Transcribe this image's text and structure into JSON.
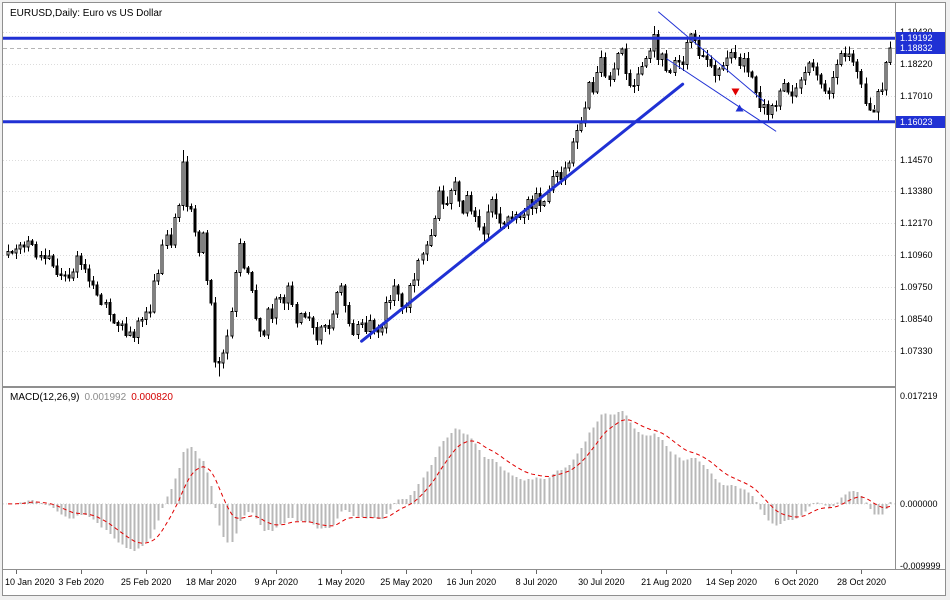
{
  "window": {
    "title": "EURUSD,Daily: Euro vs US Dollar"
  },
  "macd": {
    "name": "MACD(12,26,9)",
    "value_main": "0.001992",
    "value_signal": "0.000820"
  },
  "chart_data": {
    "type": "candlestick",
    "symbol": "EURUSD",
    "timeframe": "Daily",
    "description": "Euro vs US Dollar",
    "colors": {
      "accent_blue": "#2031d4",
      "bull": "#ffffff",
      "bear": "#000000",
      "histogram": "#b8b8b8",
      "signal": "#e00000"
    },
    "price_axis": {
      "range": {
        "top": 1.2053,
        "bottom": 1.06
      },
      "gridlines": [
        "1.19430",
        "1.18220",
        "1.17010",
        "1.14570",
        "1.13380",
        "1.12170",
        "1.10960",
        "1.09750",
        "1.08540",
        "1.07330"
      ],
      "highlighted": [
        {
          "text": "1.19192",
          "value": 1.19192,
          "type": "hline"
        },
        {
          "text": "1.18832",
          "value": 1.18832,
          "type": "bid"
        },
        {
          "text": "1.16023",
          "value": 1.16023,
          "type": "hline"
        }
      ]
    },
    "x_axis": {
      "labels": [
        {
          "text": "10 Jan 2020",
          "bar": 2
        },
        {
          "text": "3 Feb 2020",
          "bar": 18
        },
        {
          "text": "25 Feb 2020",
          "bar": 34
        },
        {
          "text": "18 Mar 2020",
          "bar": 50
        },
        {
          "text": "9 Apr 2020",
          "bar": 66
        },
        {
          "text": "1 May 2020",
          "bar": 82
        },
        {
          "text": "25 May 2020",
          "bar": 98
        },
        {
          "text": "16 Jun 2020",
          "bar": 114
        },
        {
          "text": "8 Jul 2020",
          "bar": 130
        },
        {
          "text": "30 Jul 2020",
          "bar": 146
        },
        {
          "text": "21 Aug 2020",
          "bar": 162
        },
        {
          "text": "14 Sep 2020",
          "bar": 178
        },
        {
          "text": "6 Oct 2020",
          "bar": 194
        },
        {
          "text": "28 Oct 2020",
          "bar": 210
        }
      ]
    },
    "candles": {
      "closes": [
        1.111,
        1.1105,
        1.112,
        1.1134,
        1.1128,
        1.115,
        1.1136,
        1.109,
        1.1095,
        1.1084,
        1.1093,
        1.1055,
        1.1024,
        1.1019,
        1.1022,
        1.101,
        1.1032,
        1.1093,
        1.106,
        1.1043,
        1.0998,
        1.0983,
        1.0945,
        1.091,
        1.0917,
        1.0871,
        1.084,
        1.083,
        1.0835,
        1.0792,
        1.0805,
        1.0785,
        1.0846,
        1.0853,
        1.0881,
        1.088,
        1.0999,
        1.1026,
        1.1134,
        1.1173,
        1.1135,
        1.124,
        1.1284,
        1.145,
        1.1281,
        1.1271,
        1.1184,
        1.1106,
        1.118,
        1.1,
        1.0915,
        1.0692,
        1.0688,
        1.0725,
        1.0789,
        1.0883,
        1.103,
        1.1141,
        1.1047,
        1.1031,
        1.0962,
        1.0856,
        1.0808,
        1.0793,
        1.0893,
        1.0857,
        1.093,
        1.0936,
        1.0914,
        1.098,
        1.091,
        1.084,
        1.0875,
        1.0862,
        1.0858,
        1.0822,
        1.0775,
        1.0823,
        1.083,
        1.0819,
        1.0873,
        1.0955,
        1.098,
        1.0905,
        1.0837,
        1.0795,
        1.0834,
        1.0839,
        1.0807,
        1.0848,
        1.0816,
        1.0805,
        1.082,
        1.0916,
        1.0924,
        1.098,
        1.0949,
        1.0901,
        1.0898,
        1.0981,
        1.1002,
        1.1077,
        1.1101,
        1.1134,
        1.1171,
        1.1235,
        1.1339,
        1.129,
        1.1293,
        1.1341,
        1.1374,
        1.1301,
        1.1256,
        1.1323,
        1.1264,
        1.1243,
        1.1204,
        1.1177,
        1.1261,
        1.1308,
        1.1252,
        1.1218,
        1.1219,
        1.1242,
        1.1234,
        1.1251,
        1.1239,
        1.1248,
        1.1308,
        1.1273,
        1.133,
        1.1284,
        1.13,
        1.1343,
        1.1395,
        1.141,
        1.1384,
        1.1427,
        1.1446,
        1.1526,
        1.157,
        1.1598,
        1.1655,
        1.1751,
        1.1716,
        1.179,
        1.1846,
        1.1776,
        1.1762,
        1.1802,
        1.1862,
        1.1878,
        1.1785,
        1.1739,
        1.174,
        1.1784,
        1.1813,
        1.1842,
        1.187,
        1.1933,
        1.1838,
        1.1859,
        1.1796,
        1.179,
        1.1834,
        1.183,
        1.182,
        1.1903,
        1.1936,
        1.191,
        1.1853,
        1.1851,
        1.1838,
        1.1815,
        1.1778,
        1.1802,
        1.1815,
        1.1845,
        1.1866,
        1.1847,
        1.1815,
        1.1843,
        1.1792,
        1.1772,
        1.1713,
        1.1657,
        1.1668,
        1.163,
        1.1664,
        1.1663,
        1.172,
        1.1747,
        1.1715,
        1.17,
        1.173,
        1.176,
        1.179,
        1.1826,
        1.181,
        1.178,
        1.1745,
        1.172,
        1.1709,
        1.177,
        1.182,
        1.1862,
        1.185,
        1.186,
        1.183,
        1.1794,
        1.1746,
        1.1672,
        1.1647,
        1.164,
        1.1717,
        1.1723,
        1.1827,
        1.1883
      ],
      "wick_overrides": {
        "43": {
          "high": 1.1495
        },
        "51": {
          "low": 1.067
        },
        "52": {
          "low": 1.0636
        },
        "57": {
          "high": 1.116
        },
        "159": {
          "high": 1.1966
        },
        "168": {
          "high": 1.194
        },
        "169": {
          "high": 1.195
        },
        "213": {
          "low": 1.165
        },
        "214": {
          "low": 1.1603
        }
      }
    },
    "overlays": {
      "hlines": [
        {
          "value": 1.19192
        },
        {
          "value": 1.16023
        }
      ],
      "current_price_line": {
        "value": 1.18832
      },
      "trendline": {
        "from": {
          "bar": 87,
          "price": 1.077
        },
        "to": {
          "bar": 166,
          "price": 1.1745
        }
      },
      "channel": [
        {
          "from": {
            "bar": 160,
            "price": 1.202
          },
          "to": {
            "bar": 186,
            "price": 1.168
          }
        },
        {
          "from": {
            "bar": 162,
            "price": 1.1842
          },
          "to": {
            "bar": 189,
            "price": 1.1566
          }
        }
      ],
      "arrows": [
        {
          "bar": 179,
          "price": 1.1702,
          "dir": "down",
          "color": "#e00000"
        },
        {
          "bar": 180,
          "price": 1.1668,
          "dir": "up",
          "color": "#2031d4"
        }
      ]
    },
    "macd_data": {
      "params": [
        12,
        26,
        9
      ]
    },
    "macd_axis": {
      "labels": [
        "0.017219",
        "0.000000",
        "-0.009999"
      ],
      "values": [
        0.017219,
        0,
        -0.009999
      ],
      "range": {
        "max": 0.0185,
        "min": -0.0104
      }
    }
  }
}
